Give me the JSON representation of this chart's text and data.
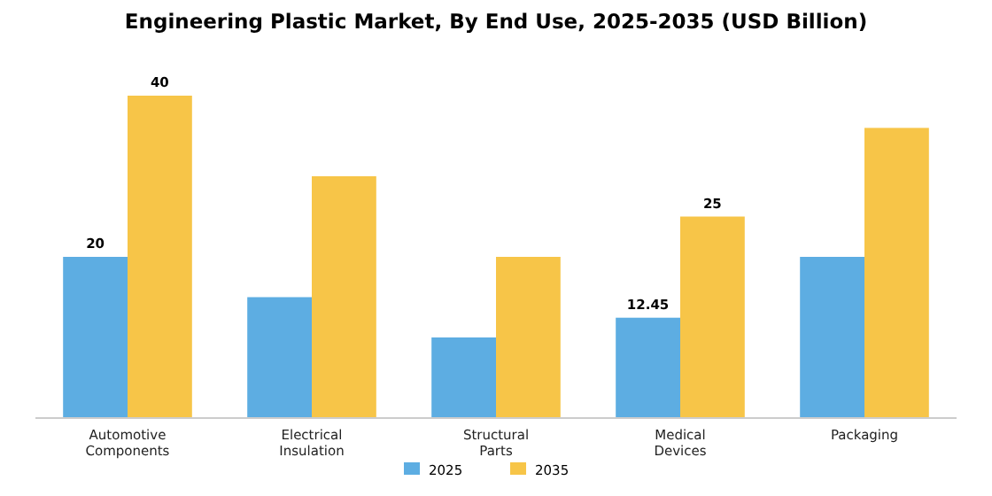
{
  "chart_data": {
    "type": "bar",
    "title": "Engineering Plastic Market, By End Use, 2025-2035 (USD Billion)",
    "categories": [
      "Automotive Components",
      "Electrical Insulation",
      "Structural Parts",
      "Medical Devices",
      "Packaging"
    ],
    "series": [
      {
        "name": "2025",
        "color": "#5dade2",
        "values": [
          20,
          15,
          10,
          12.45,
          20
        ],
        "value_labels": [
          "20",
          null,
          null,
          "12.45",
          null
        ]
      },
      {
        "name": "2035",
        "color": "#f7c548",
        "values": [
          40,
          30,
          20,
          25,
          36
        ],
        "value_labels": [
          "40",
          null,
          null,
          "25",
          null
        ]
      }
    ],
    "tick_labels": "x",
    "legend": "bottom"
  }
}
